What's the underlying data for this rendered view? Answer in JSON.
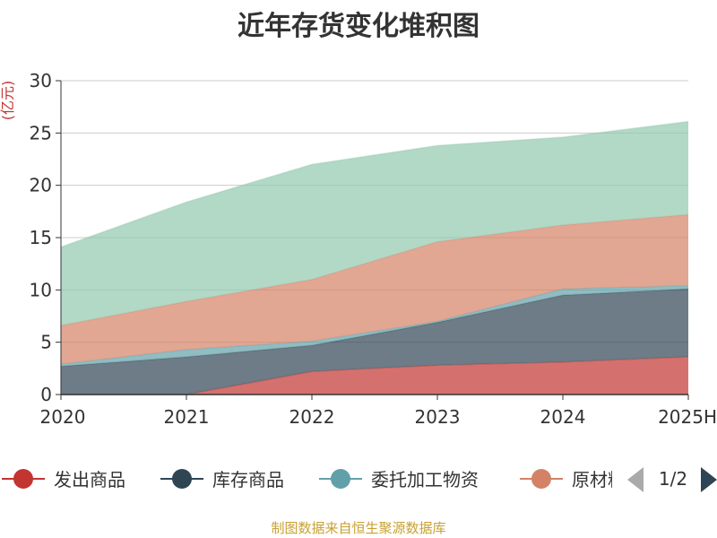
{
  "title": "近年存货变化堆积图",
  "source_note": "制图数据来自恒生聚源数据库",
  "legend_pager": {
    "text": "1/2"
  },
  "chart_data": {
    "type": "area",
    "stacked": true,
    "title": "近年存货变化堆积图",
    "ylabel": "(亿元)",
    "xlabel": "",
    "categories": [
      "2020",
      "2021",
      "2022",
      "2023",
      "2024",
      "2025H"
    ],
    "ylim": [
      0,
      30
    ],
    "yticks": [
      0,
      5,
      10,
      15,
      20,
      25,
      30
    ],
    "grid": true,
    "legend_position": "bottom",
    "series": [
      {
        "name": "发出商品",
        "color": "#c23531",
        "values": [
          0.0,
          0.0,
          2.2,
          2.8,
          3.1,
          3.6
        ]
      },
      {
        "name": "库存商品",
        "color": "#2f4554",
        "values": [
          2.7,
          3.6,
          2.5,
          4.1,
          6.4,
          6.5
        ]
      },
      {
        "name": "委托加工物资",
        "color": "#61a0a8",
        "values": [
          0.2,
          0.7,
          0.4,
          0.1,
          0.6,
          0.3
        ]
      },
      {
        "name": "原材料",
        "color": "#d48265",
        "values": [
          3.7,
          4.6,
          5.9,
          7.6,
          6.1,
          6.8
        ]
      },
      {
        "name": "",
        "color": "#91c7ae",
        "values": [
          7.5,
          9.5,
          11.0,
          9.2,
          8.4,
          8.9
        ]
      }
    ]
  }
}
